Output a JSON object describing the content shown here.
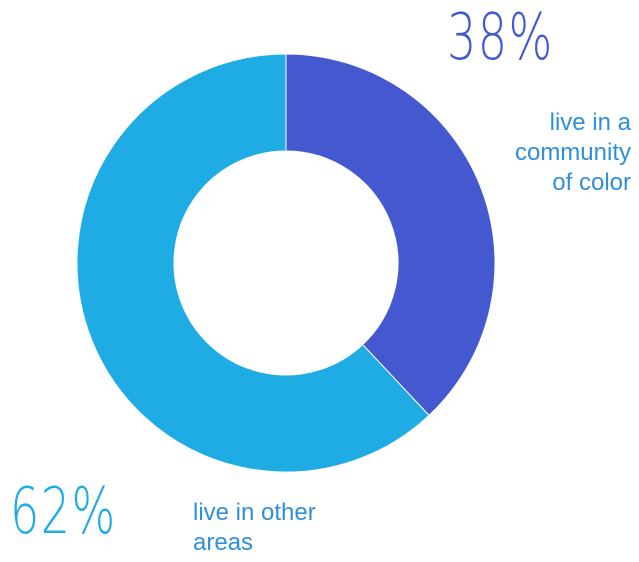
{
  "chart_data": {
    "type": "pie",
    "donut": true,
    "labels": [
      "live in a community of color",
      "live in other areas"
    ],
    "values": [
      38,
      62
    ],
    "value_labels": [
      "38%",
      "62%"
    ],
    "colors": [
      "#4459CF",
      "#1FABE3"
    ],
    "label_color": "#2F8FDB"
  }
}
